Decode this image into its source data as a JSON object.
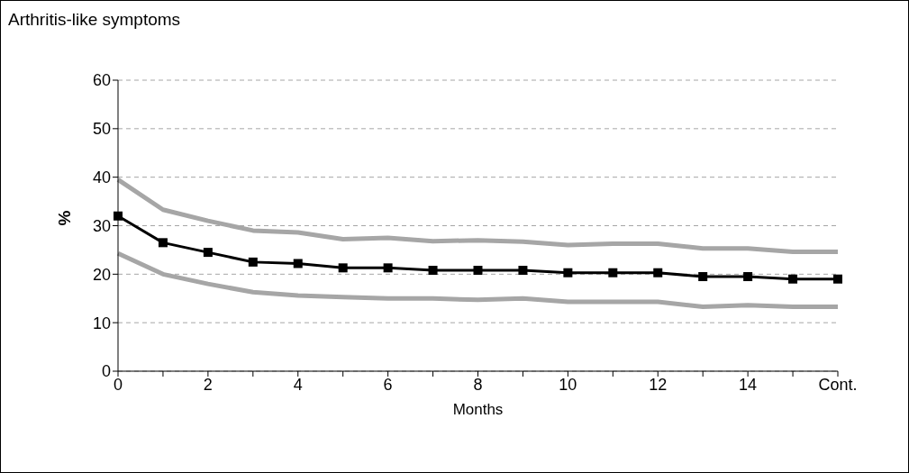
{
  "chart_data": {
    "type": "line",
    "title": "Arthritis-like symptoms",
    "xlabel": "Months",
    "ylabel": "%",
    "categories": [
      "0",
      null,
      "2",
      null,
      "4",
      null,
      "6",
      null,
      "8",
      null,
      "10",
      null,
      "12",
      null,
      "14",
      null,
      "Cont."
    ],
    "series": [
      {
        "color": "#a6a6a6",
        "marker": "none",
        "values": [
          39.5,
          33.3,
          31,
          29,
          28.6,
          27.2,
          27.5,
          26.8,
          27,
          26.7,
          26,
          26.3,
          26.3,
          25.3,
          25.3,
          24.6,
          24.6
        ]
      },
      {
        "color": "#a6a6a6",
        "marker": "none",
        "values": [
          24.3,
          20,
          18,
          16.3,
          15.6,
          15.3,
          15,
          15,
          14.7,
          15,
          14.3,
          14.3,
          14.3,
          13.3,
          13.6,
          13.3,
          13.3
        ]
      },
      {
        "color": "#000000",
        "marker": "square",
        "values": [
          32,
          26.5,
          24.5,
          22.5,
          22.2,
          21.3,
          21.3,
          20.8,
          20.8,
          20.8,
          20.3,
          20.3,
          20.3,
          19.5,
          19.5,
          19,
          19
        ]
      }
    ],
    "ylim": [
      0,
      60
    ],
    "yticks": [
      0,
      10,
      20,
      30,
      40,
      50,
      60
    ],
    "grid": "y",
    "line_style": "solid",
    "legend": false
  }
}
